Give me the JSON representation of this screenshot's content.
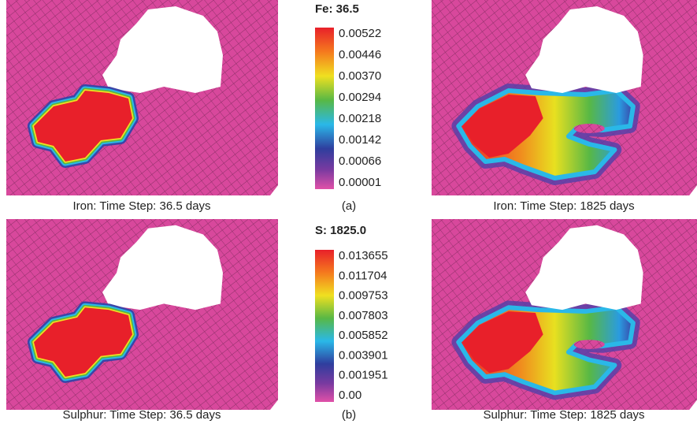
{
  "panels": [
    {
      "caption": "Iron: Time Step: 36.5 days"
    },
    {
      "caption": "Iron: Time Step: 1825 days"
    },
    {
      "caption": "Sulphur: Time Step: 36.5 days"
    },
    {
      "caption": "Sulphur: Time Step: 1825 days"
    }
  ],
  "colorbars": [
    {
      "title": "Fe: 36.5",
      "labels": [
        "0.00522",
        "0.00446",
        "0.00370",
        "0.00294",
        "0.00218",
        "0.00142",
        "0.00066",
        "0.00001"
      ],
      "subfigure": "(a)"
    },
    {
      "title": "S: 1825.0",
      "labels": [
        "0.013655",
        "0.011704",
        "0.009753",
        "0.007803",
        "0.005852",
        "0.003901",
        "0.001951",
        "0.00"
      ],
      "subfigure": "(b)"
    }
  ]
}
